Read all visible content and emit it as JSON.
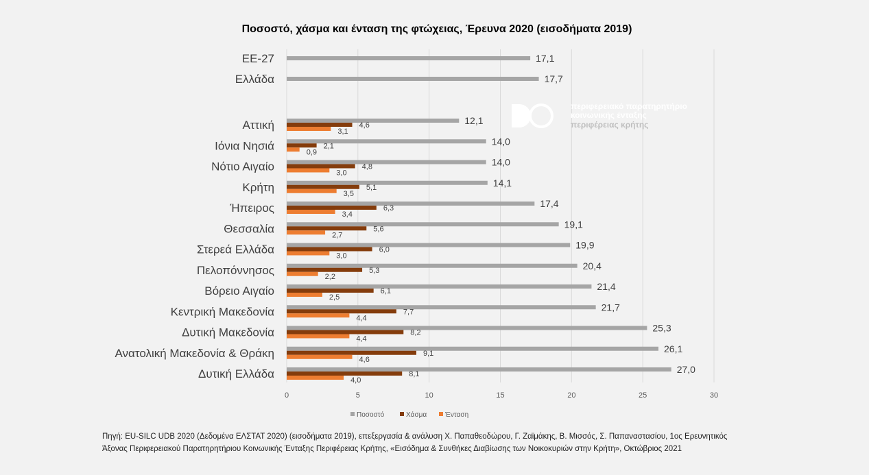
{
  "chart_data": {
    "type": "bar",
    "orientation": "horizontal",
    "title": "Ποσοστό, χάσμα και ένταση της φτώχειας, Έρευνα 2020 (εισοδήματα 2019)",
    "xlim": [
      0,
      30
    ],
    "xticks": [
      0,
      5,
      10,
      15,
      20,
      25,
      30
    ],
    "xtick_labels": [
      "0",
      "5",
      "10",
      "15",
      "20",
      "25",
      "30"
    ],
    "grid": true,
    "legend_position": "bottom",
    "reference_rows": [
      {
        "label": "ΕΕ-27",
        "value": 17.1,
        "value_label": "17,1"
      },
      {
        "label": "Ελλάδα",
        "value": 17.7,
        "value_label": "17,7"
      }
    ],
    "series": [
      {
        "name": "Ποσοστό",
        "color": "#a5a5a5"
      },
      {
        "name": "Χάσμα",
        "color": "#843c0c"
      },
      {
        "name": "Ένταση",
        "color": "#ed7d31"
      }
    ],
    "categories": [
      {
        "label": "Αττική",
        "values": [
          12.1,
          4.6,
          3.1
        ],
        "value_labels": [
          "12,1",
          "4,6",
          "3,1"
        ]
      },
      {
        "label": "Ιόνια Νησιά",
        "values": [
          14.0,
          2.1,
          0.9
        ],
        "value_labels": [
          "14,0",
          "2,1",
          "0,9"
        ]
      },
      {
        "label": "Νότιο Αιγαίο",
        "values": [
          14.0,
          4.8,
          3.0
        ],
        "value_labels": [
          "14,0",
          "4,8",
          "3,0"
        ]
      },
      {
        "label": "Κρήτη",
        "values": [
          14.1,
          5.1,
          3.5
        ],
        "value_labels": [
          "14,1",
          "5,1",
          "3,5"
        ]
      },
      {
        "label": "Ήπειρος",
        "values": [
          17.4,
          6.3,
          3.4
        ],
        "value_labels": [
          "17,4",
          "6,3",
          "3,4"
        ]
      },
      {
        "label": "Θεσσαλία",
        "values": [
          19.1,
          5.6,
          2.7
        ],
        "value_labels": [
          "19,1",
          "5,6",
          "2,7"
        ]
      },
      {
        "label": "Στερεά Ελλάδα",
        "values": [
          19.9,
          6.0,
          3.0
        ],
        "value_labels": [
          "19,9",
          "6,0",
          "3,0"
        ]
      },
      {
        "label": "Πελοπόννησος",
        "values": [
          20.4,
          5.3,
          2.2
        ],
        "value_labels": [
          "20,4",
          "5,3",
          "2,2"
        ]
      },
      {
        "label": "Βόρειο Αιγαίο",
        "values": [
          21.4,
          6.1,
          2.5
        ],
        "value_labels": [
          "21,4",
          "6,1",
          "2,5"
        ]
      },
      {
        "label": "Κεντρική Μακεδονία",
        "values": [
          21.7,
          7.7,
          4.4
        ],
        "value_labels": [
          "21,7",
          "7,7",
          "4,4"
        ]
      },
      {
        "label": "Δυτική Μακεδονία",
        "values": [
          25.3,
          8.2,
          4.4
        ],
        "value_labels": [
          "25,3",
          "8,2",
          "4,4"
        ]
      },
      {
        "label": "Ανατολική Μακεδονία & Θράκη",
        "values": [
          26.1,
          9.1,
          4.6
        ],
        "value_labels": [
          "26,1",
          "9,1",
          "4,6"
        ]
      },
      {
        "label": "Δυτική Ελλάδα",
        "values": [
          27.0,
          8.1,
          4.0
        ],
        "value_labels": [
          "27,0",
          "8,1",
          "4,0"
        ]
      }
    ]
  },
  "watermark": {
    "line1": "περιφερειακό παρατηρητήριο",
    "line2": "κοινωνικής ένταξης",
    "line3": "περιφέρειας κρήτης"
  },
  "source": {
    "line1": "Πηγή: EU-SILC UDB 2020 (Δεδομένα ΕΛΣΤΑΤ 2020) (εισοδήματα 2019), επεξεργασία & ανάλυση Χ. Παπαθεοδώρου, Γ. Ζαϊμάκης, Β. Μισσός, Σ. Παπαναστασίου, 1ος Ερευνητικός",
    "line2": "Άξονας Περιφερειακού Παρατηρητήριου Κοινωνικής Ένταξης Περιφέρειας Κρήτης, «Εισόδημα & Συνθήκες Διαβίωσης των Νοικοκυριών στην Κρήτη», Οκτώβριος 2021"
  }
}
